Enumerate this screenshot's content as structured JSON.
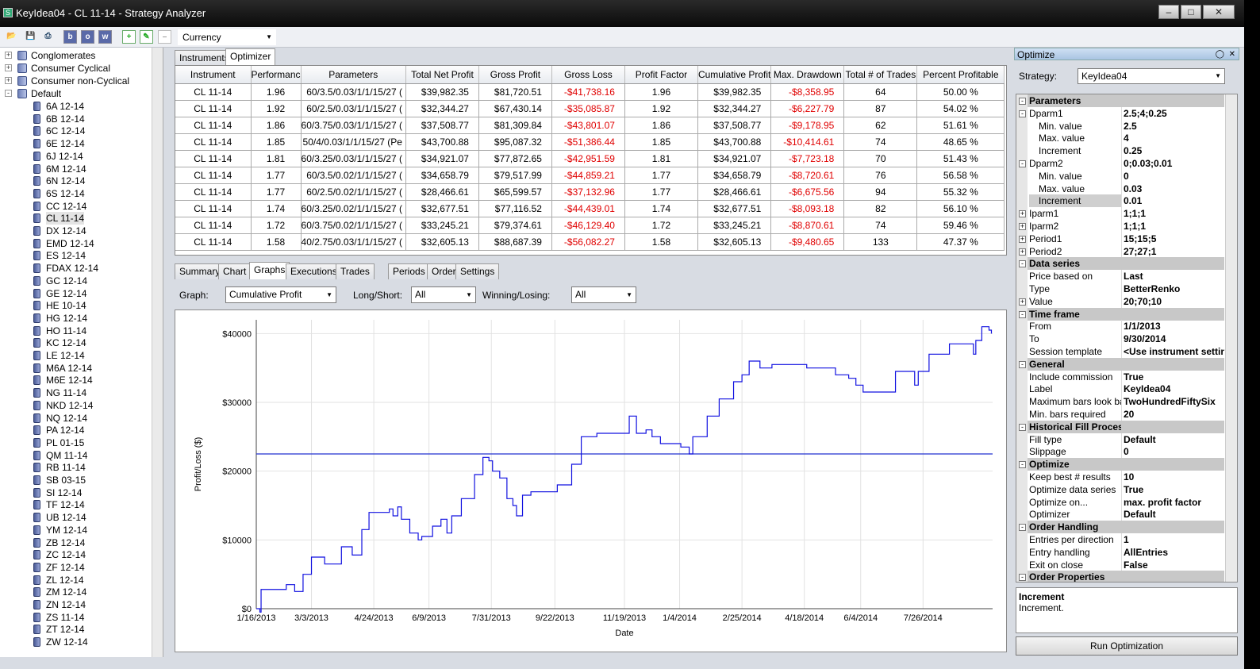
{
  "window": {
    "title": "KeyIdea04 - CL 11-14 - Strategy Analyzer"
  },
  "toolbar": {
    "currency": "Currency",
    "buttons": [
      "b",
      "o",
      "w"
    ]
  },
  "tree": {
    "groups": [
      {
        "label": "Conglomerates",
        "expander": "+"
      },
      {
        "label": "Consumer Cyclical",
        "expander": "+"
      },
      {
        "label": "Consumer non-Cyclical",
        "expander": "+"
      },
      {
        "label": "Default",
        "expander": "-"
      }
    ],
    "items": [
      "6A 12-14",
      "6B 12-14",
      "6C 12-14",
      "6E 12-14",
      "6J 12-14",
      "6M 12-14",
      "6N 12-14",
      "6S 12-14",
      "CC 12-14",
      "CL 11-14",
      "DX 12-14",
      "EMD 12-14",
      "ES 12-14",
      "FDAX 12-14",
      "GC 12-14",
      "GE 12-14",
      "HE 10-14",
      "HG 12-14",
      "HO 11-14",
      "KC 12-14",
      "LE 12-14",
      "M6A 12-14",
      "M6E 12-14",
      "NG 11-14",
      "NKD 12-14",
      "NQ 12-14",
      "PA 12-14",
      "PL 01-15",
      "QM 11-14",
      "RB 11-14",
      "SB 03-15",
      "SI 12-14",
      "TF 12-14",
      "UB 12-14",
      "YM 12-14",
      "ZB 12-14",
      "ZC 12-14",
      "ZF 12-14",
      "ZL 12-14",
      "ZM 12-14",
      "ZN 12-14",
      "ZS 11-14",
      "ZT 12-14",
      "ZW 12-14"
    ],
    "selected": "CL 11-14"
  },
  "top_tabs": [
    "Instruments",
    "Optimizer"
  ],
  "results": {
    "columns": [
      "Instrument",
      "Performanc",
      "Parameters",
      "Total Net Profit",
      "Gross Profit",
      "Gross Loss",
      "Profit Factor",
      "Cumulative Profit",
      "Max. Drawdown",
      "Total # of Trades",
      "Percent Profitable"
    ],
    "rows": [
      [
        "CL 11-14",
        "1.96",
        "60/3.5/0.03/1/1/15/27 (",
        "$39,982.35",
        "$81,720.51",
        "-$41,738.16",
        "1.96",
        "$39,982.35",
        "-$8,358.95",
        "64",
        "50.00 %"
      ],
      [
        "CL 11-14",
        "1.92",
        "60/2.5/0.03/1/1/15/27 (",
        "$32,344.27",
        "$67,430.14",
        "-$35,085.87",
        "1.92",
        "$32,344.27",
        "-$6,227.79",
        "87",
        "54.02 %"
      ],
      [
        "CL 11-14",
        "1.86",
        "60/3.75/0.03/1/1/15/27 (",
        "$37,508.77",
        "$81,309.84",
        "-$43,801.07",
        "1.86",
        "$37,508.77",
        "-$9,178.95",
        "62",
        "51.61 %"
      ],
      [
        "CL 11-14",
        "1.85",
        "50/4/0.03/1/1/15/27 (Pe",
        "$43,700.88",
        "$95,087.32",
        "-$51,386.44",
        "1.85",
        "$43,700.88",
        "-$10,414.61",
        "74",
        "48.65 %"
      ],
      [
        "CL 11-14",
        "1.81",
        "60/3.25/0.03/1/1/15/27 (",
        "$34,921.07",
        "$77,872.65",
        "-$42,951.59",
        "1.81",
        "$34,921.07",
        "-$7,723.18",
        "70",
        "51.43 %"
      ],
      [
        "CL 11-14",
        "1.77",
        "60/3.5/0.02/1/1/15/27 (",
        "$34,658.79",
        "$79,517.99",
        "-$44,859.21",
        "1.77",
        "$34,658.79",
        "-$8,720.61",
        "76",
        "56.58 %"
      ],
      [
        "CL 11-14",
        "1.77",
        "60/2.5/0.02/1/1/15/27 (",
        "$28,466.61",
        "$65,599.57",
        "-$37,132.96",
        "1.77",
        "$28,466.61",
        "-$6,675.56",
        "94",
        "55.32 %"
      ],
      [
        "CL 11-14",
        "1.74",
        "60/3.25/0.02/1/1/15/27 (",
        "$32,677.51",
        "$77,116.52",
        "-$44,439.01",
        "1.74",
        "$32,677.51",
        "-$8,093.18",
        "82",
        "56.10 %"
      ],
      [
        "CL 11-14",
        "1.72",
        "60/3.75/0.02/1/1/15/27 (",
        "$33,245.21",
        "$79,374.61",
        "-$46,129.40",
        "1.72",
        "$33,245.21",
        "-$8,870.61",
        "74",
        "59.46 %"
      ],
      [
        "CL 11-14",
        "1.58",
        "40/2.75/0.03/1/1/15/27 (",
        "$32,605.13",
        "$88,687.39",
        "-$56,082.27",
        "1.58",
        "$32,605.13",
        "-$9,480.65",
        "133",
        "47.37 %"
      ]
    ]
  },
  "bottom_tabs": [
    "Summary",
    "Chart",
    "Graphs",
    "Executions",
    "Trades",
    "Periods",
    "Orders",
    "Settings"
  ],
  "controls": {
    "graph_label": "Graph:",
    "graph_value": "Cumulative Profit",
    "longshort_label": "Long/Short:",
    "longshort_value": "All",
    "winlose_label": "Winning/Losing:",
    "winlose_value": "All"
  },
  "chart_data": {
    "type": "line",
    "xlabel": "Date",
    "ylabel": "Profit/Loss ($)",
    "ylim": [
      0,
      42000
    ],
    "yticks": [
      "$0",
      "$10000",
      "$20000",
      "$30000",
      "$40000"
    ],
    "xticks": [
      "1/16/2013",
      "3/3/2013",
      "4/24/2013",
      "6/9/2013",
      "7/31/2013",
      "9/22/2013",
      "11/19/2013",
      "1/4/2014",
      "2/25/2014",
      "4/18/2014",
      "6/4/2014",
      "7/26/2014"
    ],
    "series": [
      {
        "name": "",
        "step": true,
        "points": [
          [
            "2013-01-16",
            0
          ],
          [
            "2013-01-19",
            -500
          ],
          [
            "2013-01-20",
            2800
          ],
          [
            "2013-02-10",
            3500
          ],
          [
            "2013-02-17",
            2500
          ],
          [
            "2013-02-24",
            5000
          ],
          [
            "2013-03-03",
            7500
          ],
          [
            "2013-03-14",
            6500
          ],
          [
            "2013-03-28",
            9000
          ],
          [
            "2013-04-06",
            7800
          ],
          [
            "2013-04-14",
            11500
          ],
          [
            "2013-04-20",
            14000
          ],
          [
            "2013-05-07",
            14500
          ],
          [
            "2013-05-10",
            13500
          ],
          [
            "2013-05-14",
            14800
          ],
          [
            "2013-05-17",
            13000
          ],
          [
            "2013-05-24",
            11000
          ],
          [
            "2013-05-31",
            10000
          ],
          [
            "2013-06-03",
            10500
          ],
          [
            "2013-06-12",
            12000
          ],
          [
            "2013-06-19",
            13000
          ],
          [
            "2013-06-24",
            11000
          ],
          [
            "2013-06-28",
            13500
          ],
          [
            "2013-07-06",
            16000
          ],
          [
            "2013-07-17",
            19500
          ],
          [
            "2013-07-24",
            22000
          ],
          [
            "2013-07-29",
            21500
          ],
          [
            "2013-08-01",
            20000
          ],
          [
            "2013-08-07",
            19000
          ],
          [
            "2013-08-13",
            16000
          ],
          [
            "2013-08-18",
            15000
          ],
          [
            "2013-08-21",
            13500
          ],
          [
            "2013-08-26",
            16500
          ],
          [
            "2013-09-02",
            17000
          ],
          [
            "2013-09-24",
            18000
          ],
          [
            "2013-10-06",
            21000
          ],
          [
            "2013-10-14",
            25000
          ],
          [
            "2013-10-27",
            25500
          ],
          [
            "2013-11-14",
            25500
          ],
          [
            "2013-11-23",
            28000
          ],
          [
            "2013-11-29",
            25500
          ],
          [
            "2013-12-07",
            26000
          ],
          [
            "2013-12-12",
            25000
          ],
          [
            "2013-12-19",
            24000
          ],
          [
            "2014-01-05",
            23500
          ],
          [
            "2014-01-12",
            22500
          ],
          [
            "2014-01-15",
            25000
          ],
          [
            "2014-01-27",
            28000
          ],
          [
            "2014-02-06",
            30500
          ],
          [
            "2014-02-18",
            33000
          ],
          [
            "2014-02-25",
            34000
          ],
          [
            "2014-03-03",
            36000
          ],
          [
            "2014-03-12",
            35000
          ],
          [
            "2014-03-22",
            35500
          ],
          [
            "2014-04-20",
            35000
          ],
          [
            "2014-05-14",
            34000
          ],
          [
            "2014-05-25",
            33500
          ],
          [
            "2014-05-31",
            32500
          ],
          [
            "2014-06-06",
            31500
          ],
          [
            "2014-07-03",
            34500
          ],
          [
            "2014-07-19",
            32500
          ],
          [
            "2014-07-22",
            34500
          ],
          [
            "2014-07-31",
            37000
          ],
          [
            "2014-08-17",
            38500
          ],
          [
            "2014-09-06",
            37000
          ],
          [
            "2014-09-08",
            39000
          ],
          [
            "2014-09-13",
            41000
          ],
          [
            "2014-09-19",
            40500
          ],
          [
            "2014-09-21",
            40000
          ]
        ]
      },
      {
        "name": "",
        "constant": 22500
      }
    ],
    "grid": true
  },
  "optimize_panel": {
    "title": "Optimize",
    "strategy_label": "Strategy:",
    "strategy_value": "KeyIdea04",
    "properties": [
      {
        "cat": "Parameters"
      },
      {
        "k": "Dparm1",
        "v": "2.5;4;0.25",
        "ex": "-"
      },
      {
        "k": "Min. value",
        "v": "2.5",
        "sub": true
      },
      {
        "k": "Max. value",
        "v": "4",
        "sub": true
      },
      {
        "k": "Increment",
        "v": "0.25",
        "sub": true
      },
      {
        "k": "Dparm2",
        "v": "0;0.03;0.01",
        "ex": "-"
      },
      {
        "k": "Min. value",
        "v": "0",
        "sub": true
      },
      {
        "k": "Max. value",
        "v": "0.03",
        "sub": true
      },
      {
        "k": "Increment",
        "v": "0.01",
        "sub": true,
        "selected": true
      },
      {
        "k": "Iparm1",
        "v": "1;1;1",
        "ex": "+"
      },
      {
        "k": "Iparm2",
        "v": "1;1;1",
        "ex": "+"
      },
      {
        "k": "Period1",
        "v": "15;15;5",
        "ex": "+"
      },
      {
        "k": "Period2",
        "v": "27;27;1",
        "ex": "+"
      },
      {
        "cat": "Data series"
      },
      {
        "k": "Price based on",
        "v": "Last"
      },
      {
        "k": "Type",
        "v": "BetterRenko"
      },
      {
        "k": "Value",
        "v": "20;70;10",
        "ex": "+"
      },
      {
        "cat": "Time frame"
      },
      {
        "k": "From",
        "v": "1/1/2013"
      },
      {
        "k": "To",
        "v": "9/30/2014"
      },
      {
        "k": "Session template",
        "v": "<Use instrument setting"
      },
      {
        "cat": "General"
      },
      {
        "k": "Include commission",
        "v": "True"
      },
      {
        "k": "Label",
        "v": "KeyIdea04"
      },
      {
        "k": "Maximum bars look bac",
        "v": "TwoHundredFiftySix"
      },
      {
        "k": "Min. bars required",
        "v": "20"
      },
      {
        "cat": "Historical Fill Processing"
      },
      {
        "k": "Fill type",
        "v": "Default"
      },
      {
        "k": "Slippage",
        "v": "0"
      },
      {
        "cat": "Optimize"
      },
      {
        "k": "Keep best # results",
        "v": "10"
      },
      {
        "k": "Optimize data series",
        "v": "True"
      },
      {
        "k": "Optimize on...",
        "v": "max. profit factor"
      },
      {
        "k": "Optimizer",
        "v": "Default"
      },
      {
        "cat": "Order Handling"
      },
      {
        "k": "Entries per direction",
        "v": "1"
      },
      {
        "k": "Entry handling",
        "v": "AllEntries"
      },
      {
        "k": "Exit on close",
        "v": "False"
      },
      {
        "cat": "Order Properties"
      }
    ],
    "desc_title": "Increment",
    "desc_text": "Increment.",
    "run_button": "Run Optimization"
  },
  "colors": {
    "negative": "#e00000",
    "line": "#0000ff",
    "category_bg": "#c8c8c8"
  }
}
